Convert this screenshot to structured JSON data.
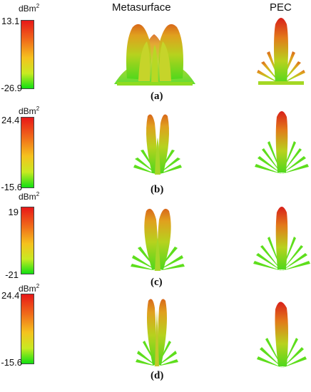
{
  "headers": {
    "metasurface": "Metasurface",
    "pec": "PEC"
  },
  "unit": "dBm",
  "unit_exp": "2",
  "colorbar": {
    "top_color": "#e81818",
    "bottom_color": "#12e012"
  },
  "rows": [
    {
      "label": "(a)",
      "max": "13.1",
      "min": "-26.9"
    },
    {
      "label": "(b)",
      "max": "24.4",
      "min": "-15.6"
    },
    {
      "label": "(c)",
      "max": "19",
      "min": "-21"
    },
    {
      "label": "(d)",
      "max": "24.4",
      "min": "-15.6"
    }
  ]
}
